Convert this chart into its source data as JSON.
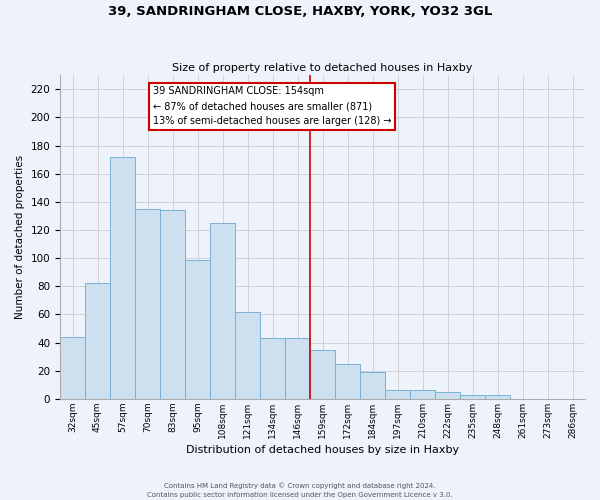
{
  "title": "39, SANDRINGHAM CLOSE, HAXBY, YORK, YO32 3GL",
  "subtitle": "Size of property relative to detached houses in Haxby",
  "xlabel": "Distribution of detached houses by size in Haxby",
  "ylabel": "Number of detached properties",
  "footer_line1": "Contains HM Land Registry data © Crown copyright and database right 2024.",
  "footer_line2": "Contains public sector information licensed under the Open Government Licence v 3.0.",
  "bar_labels": [
    "32sqm",
    "45sqm",
    "57sqm",
    "70sqm",
    "83sqm",
    "95sqm",
    "108sqm",
    "121sqm",
    "134sqm",
    "146sqm",
    "159sqm",
    "172sqm",
    "184sqm",
    "197sqm",
    "210sqm",
    "222sqm",
    "235sqm",
    "248sqm",
    "261sqm",
    "273sqm",
    "286sqm"
  ],
  "bar_values": [
    44,
    82,
    172,
    135,
    134,
    99,
    125,
    62,
    43,
    43,
    35,
    25,
    19,
    6,
    6,
    5,
    3,
    3,
    0,
    0,
    0
  ],
  "bar_color": "#cce0f0",
  "bar_edge_color": "#7ab0d4",
  "annotation_text": "39 SANDRINGHAM CLOSE: 154sqm\n← 87% of detached houses are smaller (871)\n13% of semi-detached houses are larger (128) →",
  "annotation_box_color": "#ffffff",
  "annotation_border_color": "#cc0000",
  "vline_color": "#cc0000",
  "ylim": [
    0,
    230
  ],
  "yticks": [
    0,
    20,
    40,
    60,
    80,
    100,
    120,
    140,
    160,
    180,
    200,
    220
  ],
  "grid_color": "#cccccc",
  "bg_color": "#eef2fb",
  "figsize": [
    6.0,
    5.0
  ],
  "dpi": 100
}
